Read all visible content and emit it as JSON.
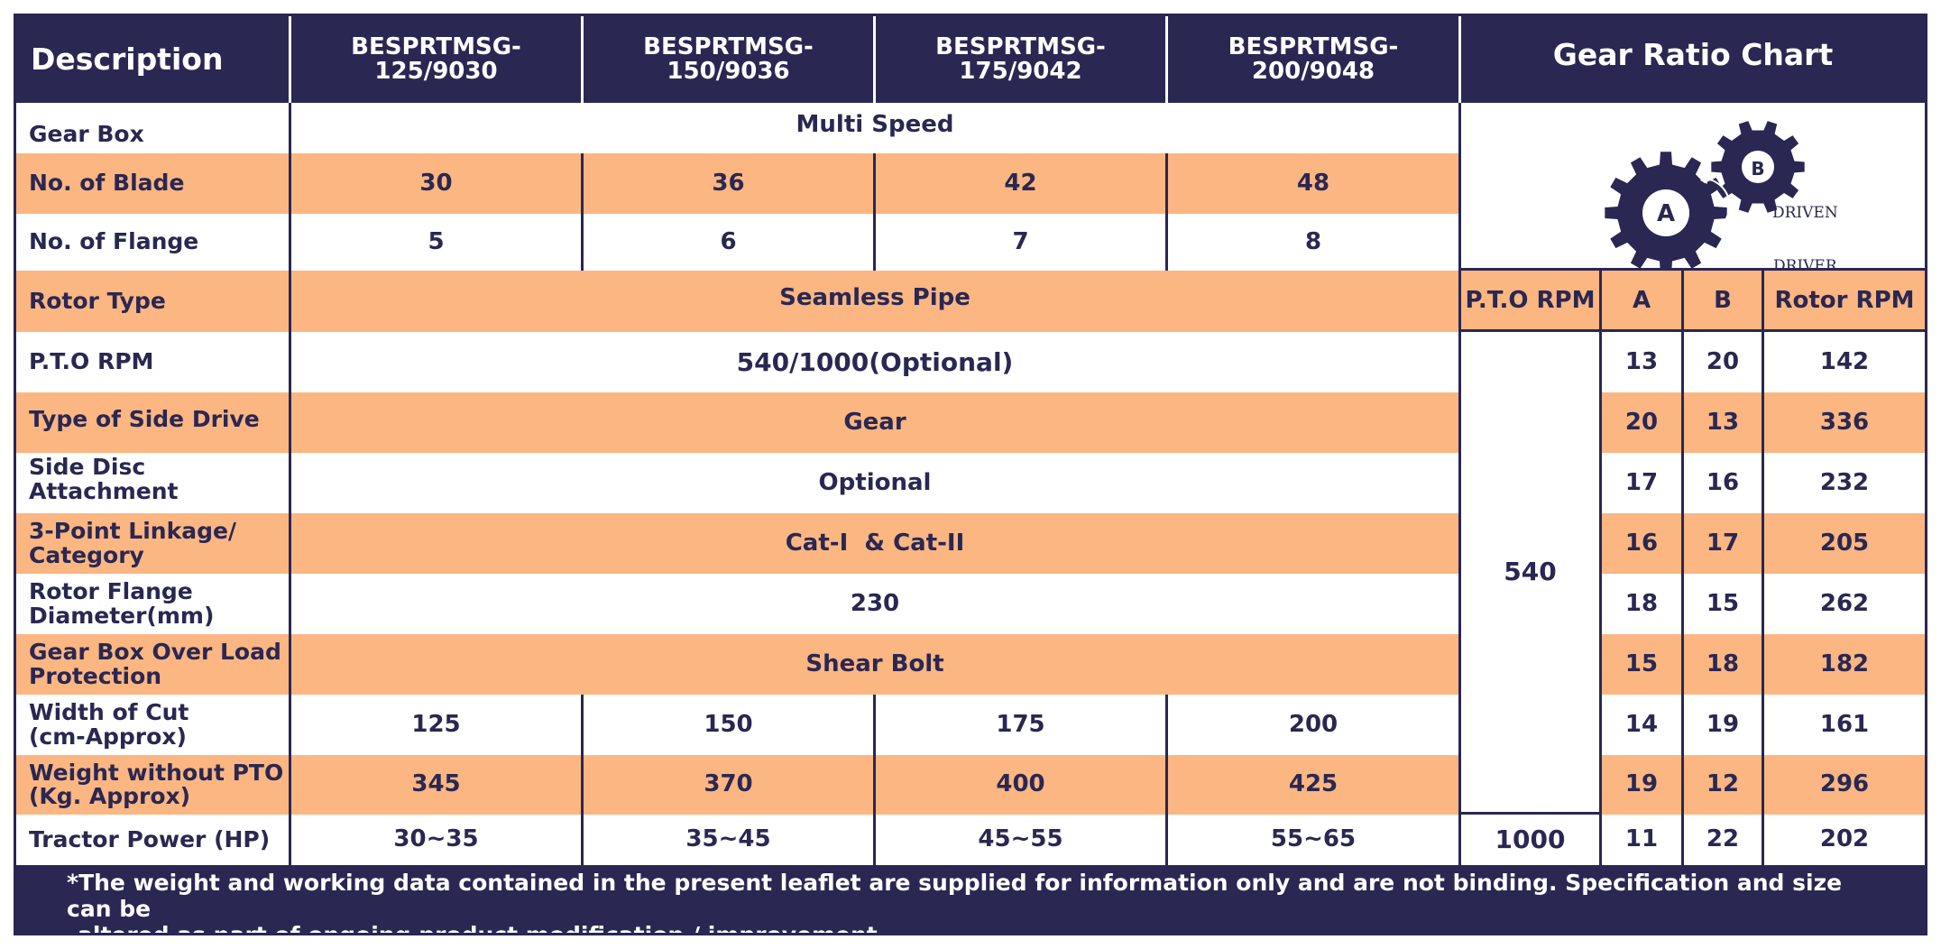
{
  "header": {
    "description": "Description",
    "models": [
      "BESPRTMSG-\n125/9030",
      "BESPRTMSG-\n150/9036",
      "BESPRTMSG-\n175/9042",
      "BESPRTMSG-\n200/9048"
    ],
    "gear_chart_title": "Gear Ratio Chart"
  },
  "spec": {
    "gear_box": {
      "label": "Gear Box",
      "value": "Multi Speed"
    },
    "blades": {
      "label": "No. of Blade",
      "values": [
        "30",
        "36",
        "42",
        "48"
      ]
    },
    "flanges": {
      "label": "No. of Flange",
      "values": [
        "5",
        "6",
        "7",
        "8"
      ]
    },
    "rotor_type": {
      "label": "Rotor Type",
      "value": "Seamless Pipe"
    },
    "pto_rpm": {
      "label": "P.T.O RPM",
      "value": "540/1000(Optional)"
    },
    "side_drive": {
      "label": "Type of Side Drive",
      "value": "Gear"
    },
    "side_disc": {
      "label": "Side Disc Attachment",
      "value": "Optional"
    },
    "linkage": {
      "label": "3-Point Linkage/\nCategory",
      "value": "Cat-I  & Cat-II"
    },
    "flange_diameter": {
      "label": "Rotor Flange\nDiameter(mm)",
      "value": "230"
    },
    "overload": {
      "label": "Gear Box Over Load\nProtection",
      "value": "Shear Bolt"
    },
    "width_of_cut": {
      "label": "Width of Cut\n(cm-Approx)",
      "values": [
        "125",
        "150",
        "175",
        "200"
      ]
    },
    "weight": {
      "label": "Weight without PTO\n(Kg. Approx)",
      "values": [
        "345",
        "370",
        "400",
        "425"
      ]
    },
    "tractor_power": {
      "label": "Tractor Power (HP)",
      "values": [
        "30~35",
        "35~45",
        "45~55",
        "55~65"
      ]
    }
  },
  "gear_chart": {
    "icon_labels": {
      "gear_a": "A",
      "gear_b": "B",
      "driver": "DRIVER",
      "driven": "DRIVEN"
    },
    "columns": [
      "P.T.O RPM",
      "A",
      "B",
      "Rotor RPM"
    ],
    "pto_540": "540",
    "pto_1000": "1000",
    "rows": [
      {
        "a": "13",
        "b": "20",
        "rpm": "142"
      },
      {
        "a": "20",
        "b": "13",
        "rpm": "336"
      },
      {
        "a": "17",
        "b": "16",
        "rpm": "232"
      },
      {
        "a": "16",
        "b": "17",
        "rpm": "205"
      },
      {
        "a": "18",
        "b": "15",
        "rpm": "262"
      },
      {
        "a": "15",
        "b": "18",
        "rpm": "182"
      },
      {
        "a": "14",
        "b": "19",
        "rpm": "161"
      },
      {
        "a": "19",
        "b": "12",
        "rpm": "296"
      },
      {
        "a": "11",
        "b": "22",
        "rpm": "202"
      }
    ]
  },
  "footer": {
    "line1": "*The weight and working data contained in the present leaflet are supplied for information only and are not binding. Specification and size can be",
    "line2": "altered as part of ongoing product modification / improvement."
  },
  "colors": {
    "navy": "#2a2752",
    "orange": "#fbb682",
    "white": "#ffffff"
  }
}
